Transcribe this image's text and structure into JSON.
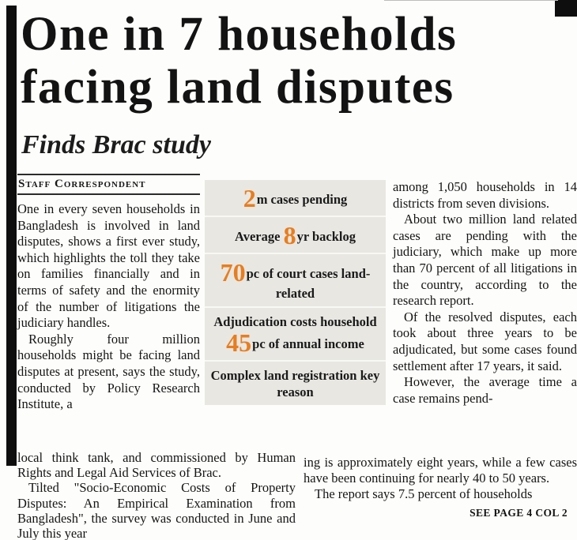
{
  "page": {
    "bg_color": "#fdfdfb",
    "ink_color": "#161616"
  },
  "article": {
    "headline_line1": "One in 7 households",
    "headline_line2": "facing land disputes",
    "subtitle": "Finds Brac study",
    "byline": "Staff Correspondent"
  },
  "stats_box": {
    "bg_color": "#e8e7e2",
    "accent_color": "#e87d1e",
    "items": [
      {
        "number": "2",
        "suffix": "m cases pending"
      },
      {
        "prefix": "Average ",
        "number": "8",
        "suffix": "yr backlog"
      },
      {
        "number": "70",
        "suffix": "pc of court cases land-related"
      },
      {
        "line1": "Adjudication costs household",
        "number": "45",
        "suffix": "pc of annual income"
      },
      {
        "text": "Complex land registration key reason"
      }
    ]
  },
  "body": {
    "left_col": {
      "para1": "One in every seven households in Bangladesh is involved in land disputes, shows a first ever study, which highlights the toll they take on families financially and in terms of safety and the enormity of the number of litigations the judiciary handles.",
      "para2_narrow": "Roughly four million households might be facing land disputes at present, says the study, conducted by Policy Research Institute, a",
      "para2_wide": "local think tank, and commissioned by Human Rights and Legal Aid Services of Brac.",
      "para3": "Tilted \"Socio-Economic Costs of Property Disputes: An Empirical Examination from Bangladesh\", the survey was conducted in June and July this year"
    },
    "right_col": {
      "para1": "among 1,050 households in 14 districts from seven divisions.",
      "para2": "About two million land related cases are pending with the judiciary, which make up more than 70 percent of all litigations in the country, according to the research report.",
      "para3": "Of the resolved disputes, each took about three years to be adjudicated, but some cases found settlement after 17 years, it said.",
      "para4_narrow": "However, the average time a case remains pend-",
      "para4_wide": "ing is approximately eight years, while a few cases have been continuing for nearly 40 to 50 years.",
      "para5": "The report says 7.5 percent of households"
    },
    "continuation": "SEE PAGE 4 COL 2"
  }
}
